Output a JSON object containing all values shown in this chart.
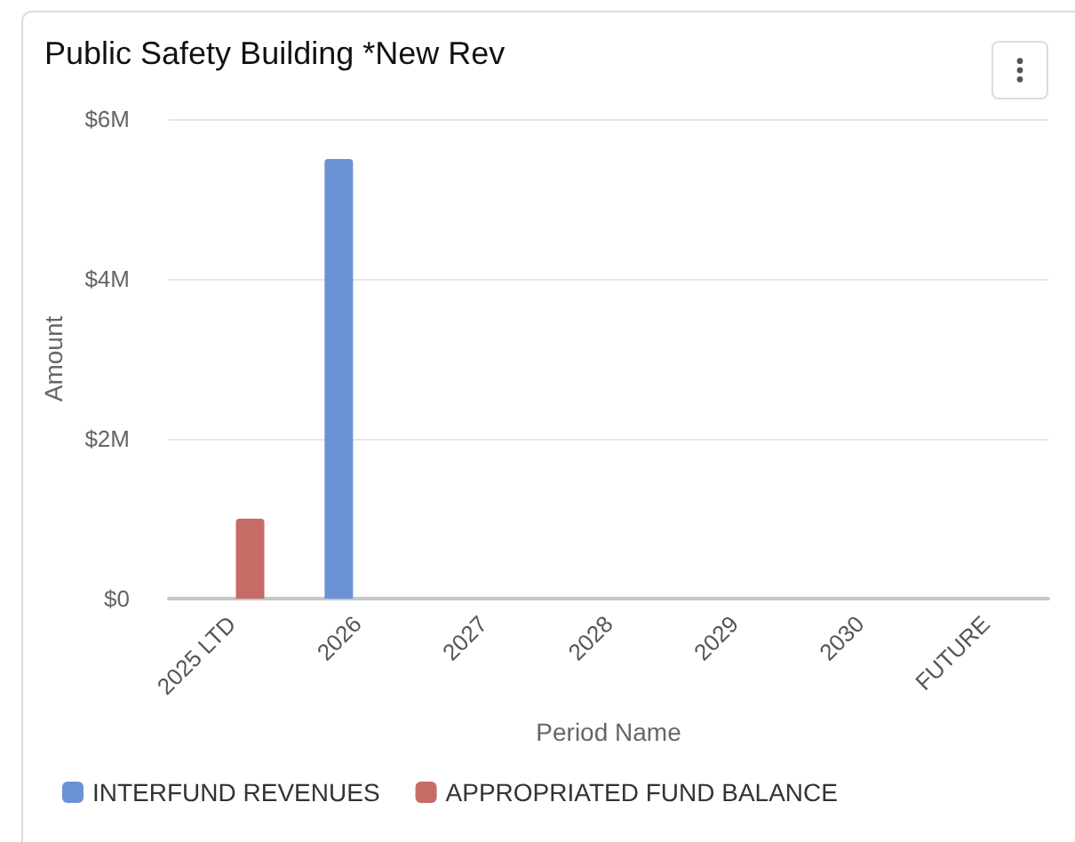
{
  "chart_data": {
    "type": "bar",
    "title": "Public Safety Building *New Rev",
    "xlabel": "Period Name",
    "ylabel": "Amount",
    "categories": [
      "2025 LTD",
      "2026",
      "2027",
      "2028",
      "2029",
      "2030",
      "FUTURE"
    ],
    "series": [
      {
        "name": "INTERFUND REVENUES",
        "color": "#6a92d5",
        "values": [
          0,
          5500000,
          0,
          0,
          0,
          0,
          0
        ]
      },
      {
        "name": "APPROPRIATED FUND BALANCE",
        "color": "#c76b67",
        "values": [
          1000000,
          0,
          0,
          0,
          0,
          0,
          0
        ]
      }
    ],
    "ylim": [
      0,
      6000000
    ],
    "yticks": [
      {
        "value": 0,
        "label": "$0"
      },
      {
        "value": 2000000,
        "label": "$2M"
      },
      {
        "value": 4000000,
        "label": "$4M"
      },
      {
        "value": 6000000,
        "label": "$6M"
      }
    ],
    "grid": "y",
    "legend": "bottom left"
  }
}
